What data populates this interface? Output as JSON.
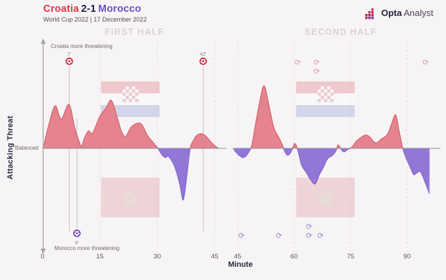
{
  "header": {
    "home_team": "Croatia",
    "score": "2-1",
    "away_team": "Morocco",
    "subtitle": "World Cup 2022 | 17 December 2022",
    "brand_bold": "Opta",
    "brand_regular": "Analyst"
  },
  "panels": {
    "first": "FIRST HALF",
    "second": "SECOND HALF"
  },
  "axis": {
    "y_title": "Attacking Threat",
    "x_title": "Minute",
    "balanced": "Balanced",
    "top_annotation": "Croatia more threatening",
    "bottom_annotation": "Morocco more threatening"
  },
  "colors": {
    "background": "#f7f4f5",
    "croatia_fill": "#e5838f",
    "croatia_stroke": "#d4616e",
    "morocco_fill": "#9377d6",
    "morocco_stroke": "#8162cc",
    "baseline": "#8f8c96",
    "grid": "#dcd8db",
    "axis_arrow": "#a8a4ab",
    "goal_line": "#c6c2c8",
    "croatia_goal_marker": "#c8293e",
    "morocco_goal_marker": "#6a43b8",
    "croatia_sub_icon": "#e39aa1",
    "morocco_sub_icon": "#9b87cf",
    "tick_text": "#5b5662",
    "goal_label_text": "#8a8791"
  },
  "chart_data": {
    "type": "area",
    "title": "Attacking Threat timeline — Croatia 2-1 Morocco",
    "x_unit": "minute",
    "value_meaning": "relative attacking threat: positive = Croatia more threatening (red, up), negative = Morocco more threatening (purple, down), 0 = balanced",
    "value_range": [
      -100,
      100
    ],
    "first_half_ticks": [
      0,
      15,
      30,
      45
    ],
    "second_half_ticks": [
      45,
      60,
      75,
      90
    ],
    "first_half_points": [
      [
        0,
        0
      ],
      [
        0.5,
        8
      ],
      [
        1.6,
        33
      ],
      [
        3.3,
        61
      ],
      [
        4.9,
        42
      ],
      [
        6.9,
        63
      ],
      [
        8.4,
        30
      ],
      [
        9.5,
        11
      ],
      [
        10.2,
        3
      ],
      [
        10.9,
        14
      ],
      [
        12,
        25
      ],
      [
        13.1,
        22
      ],
      [
        14.9,
        45
      ],
      [
        16.6,
        58
      ],
      [
        18,
        69
      ],
      [
        19.5,
        45
      ],
      [
        20.6,
        25
      ],
      [
        21.7,
        17
      ],
      [
        23.1,
        30
      ],
      [
        24.8,
        36
      ],
      [
        26,
        34
      ],
      [
        27.5,
        18
      ],
      [
        29.3,
        6
      ],
      [
        30.2,
        0
      ],
      [
        31.3,
        -10
      ],
      [
        32.2,
        -13
      ],
      [
        32.8,
        -11
      ],
      [
        33.9,
        -19
      ],
      [
        34.8,
        -30
      ],
      [
        35.9,
        -52
      ],
      [
        36.8,
        -74
      ],
      [
        37.7,
        -40
      ],
      [
        38.6,
        0
      ],
      [
        39.5,
        12
      ],
      [
        40.4,
        19
      ],
      [
        41.5,
        21
      ],
      [
        42.6,
        18
      ],
      [
        43.9,
        10
      ],
      [
        45,
        4
      ],
      [
        45.9,
        0
      ]
    ],
    "second_half_points": [
      [
        44,
        -2
      ],
      [
        45.4,
        -10
      ],
      [
        46.7,
        -13
      ],
      [
        48,
        -5
      ],
      [
        48.8,
        5
      ],
      [
        49.6,
        30
      ],
      [
        50.7,
        62
      ],
      [
        52,
        90
      ],
      [
        53.3,
        62
      ],
      [
        54.6,
        30
      ],
      [
        55.9,
        16
      ],
      [
        56.9,
        5
      ],
      [
        57.4,
        -3
      ],
      [
        58.3,
        -10
      ],
      [
        59.3,
        -4
      ],
      [
        60.2,
        7
      ],
      [
        61.1,
        -5
      ],
      [
        62,
        -24
      ],
      [
        63.3,
        -35
      ],
      [
        64.4,
        -45
      ],
      [
        65.6,
        -51
      ],
      [
        66.7,
        -38
      ],
      [
        67.8,
        -27
      ],
      [
        68.9,
        -15
      ],
      [
        70.2,
        -10
      ],
      [
        71.1,
        -4
      ],
      [
        71.7,
        5
      ],
      [
        72.6,
        -2
      ],
      [
        73.3,
        -5
      ],
      [
        74.4,
        -1
      ],
      [
        75.4,
        2
      ],
      [
        76.5,
        10
      ],
      [
        77.6,
        15
      ],
      [
        78.9,
        19
      ],
      [
        80,
        17
      ],
      [
        81.1,
        10
      ],
      [
        82,
        8
      ],
      [
        83.1,
        13
      ],
      [
        84.8,
        20
      ],
      [
        85.9,
        35
      ],
      [
        87,
        48
      ],
      [
        87.9,
        25
      ],
      [
        88.9,
        0
      ],
      [
        89.8,
        -14
      ],
      [
        90.7,
        -25
      ],
      [
        91.7,
        -37
      ],
      [
        92.2,
        -37
      ],
      [
        92.9,
        -34
      ],
      [
        93.5,
        -33
      ],
      [
        94.2,
        -40
      ],
      [
        94.9,
        -50
      ],
      [
        95.5,
        -58
      ],
      [
        96,
        -65
      ]
    ],
    "goals": {
      "croatia": [
        7,
        42
      ],
      "morocco": [
        9
      ]
    },
    "substitutions": {
      "croatia": [
        61,
        66,
        66,
        95
      ],
      "morocco": [
        46,
        56,
        64,
        64,
        67
      ]
    }
  }
}
